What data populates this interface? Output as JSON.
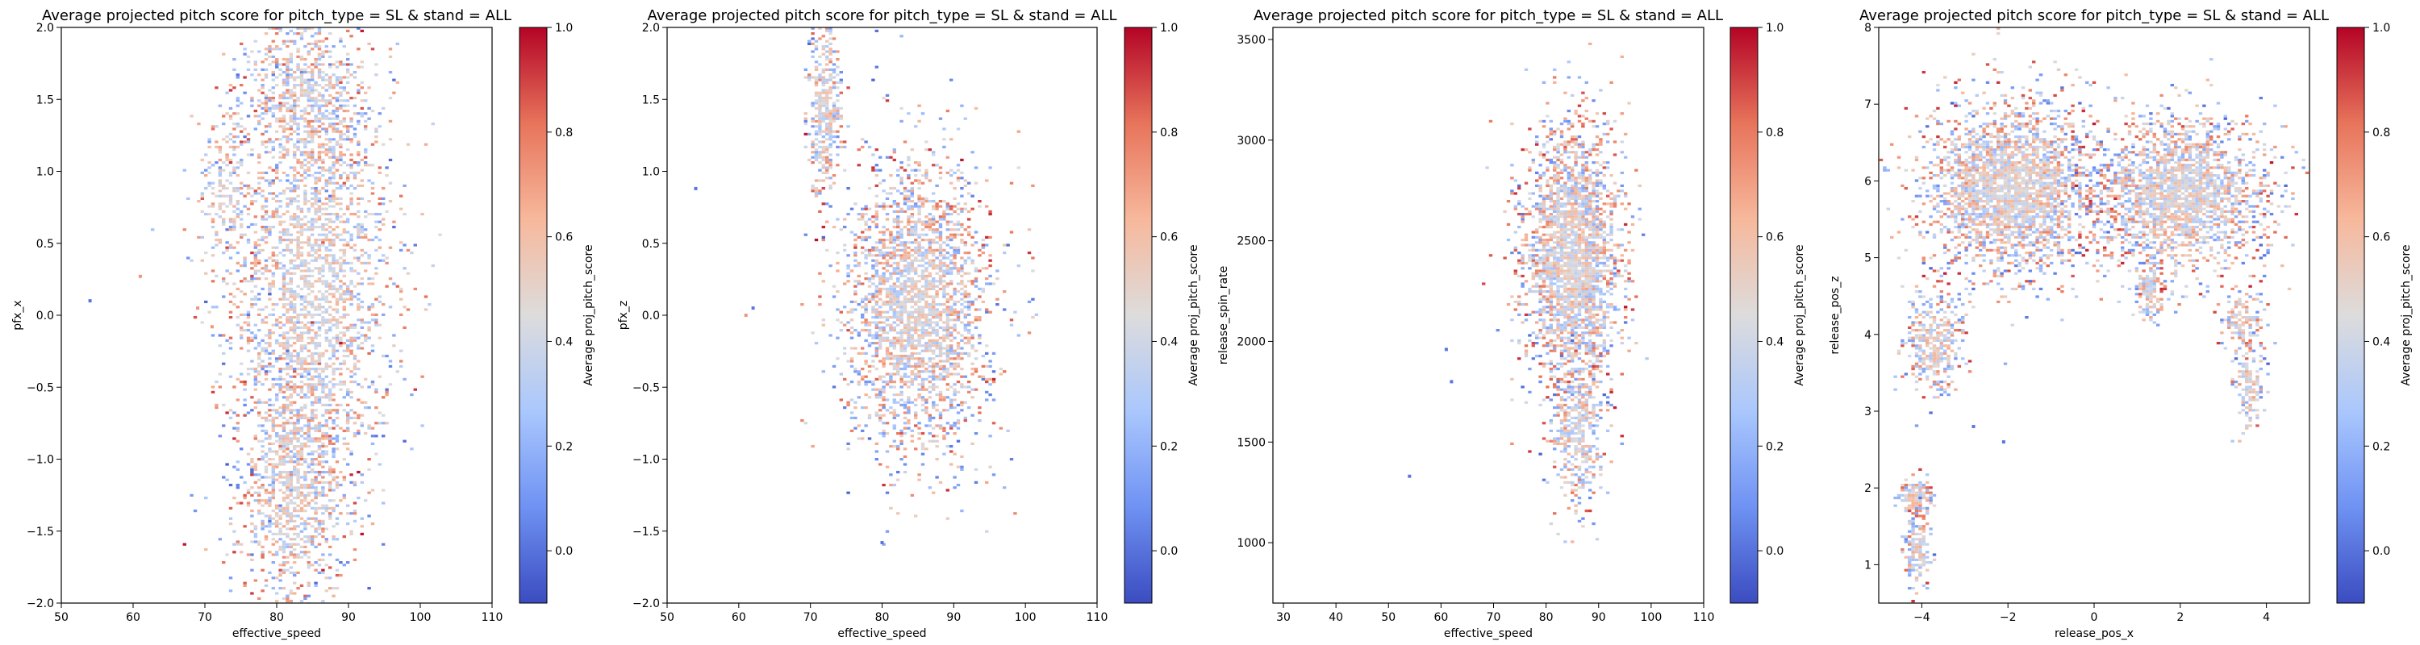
{
  "figure": {
    "colormap": "coolwarm",
    "colormap_stops": [
      "#3b4cc0",
      "#6f92f3",
      "#aac7fd",
      "#dddcdc",
      "#f7b89c",
      "#e7745b",
      "#b40426"
    ]
  },
  "chart_data": [
    {
      "type": "heatmap",
      "subtype": "hexbin",
      "title": "Average projected pitch score for pitch_type = SL & stand = ALL",
      "xlabel": "effective_speed",
      "ylabel": "pfx_x",
      "xlim": [
        50,
        110
      ],
      "ylim": [
        -2,
        2
      ],
      "xticks": [
        "50",
        "60",
        "70",
        "80",
        "90",
        "100",
        "110"
      ],
      "yticks": [
        "-2.0",
        "-1.5",
        "-1.0",
        "-0.5",
        "0.0",
        "0.5",
        "1.0",
        "1.5",
        "2.0"
      ],
      "colorbar": {
        "label": "Average proj_pitch_score",
        "range": [
          -0.1,
          1.0
        ],
        "ticks": [
          "0.0",
          "0.2",
          "0.4",
          "0.6",
          "0.8",
          "1.0"
        ]
      },
      "clusters": [
        {
          "cx": 85,
          "cy": 0.2,
          "sx": 5.5,
          "sy": 0.85,
          "density": 1.0
        },
        {
          "cx": 82,
          "cy": -1.2,
          "sx": 3.5,
          "sy": 0.45,
          "density": 0.35
        },
        {
          "cx": 84,
          "cy": 1.5,
          "sx": 4,
          "sy": 0.35,
          "density": 0.25
        },
        {
          "cx": 73,
          "cy": 0.9,
          "sx": 2,
          "sy": 0.3,
          "density": 0.08
        }
      ],
      "outliers": [
        [
          54,
          0.1
        ],
        [
          61,
          0.27
        ],
        [
          71,
          -0.08
        ],
        [
          69,
          0.05
        ]
      ]
    },
    {
      "type": "heatmap",
      "subtype": "hexbin",
      "title": "Average projected pitch score for pitch_type = SL & stand = ALL",
      "xlabel": "effective_speed",
      "ylabel": "pfx_z",
      "xlim": [
        50,
        110
      ],
      "ylim": [
        -2,
        2
      ],
      "xticks": [
        "50",
        "60",
        "70",
        "80",
        "90",
        "100",
        "110"
      ],
      "yticks": [
        "-2.0",
        "-1.5",
        "-1.0",
        "-0.5",
        "0.0",
        "0.5",
        "1.0",
        "1.5",
        "2.0"
      ],
      "colorbar": {
        "label": "Average proj_pitch_score",
        "range": [
          -0.1,
          1.0
        ],
        "ticks": [
          "0.0",
          "0.2",
          "0.4",
          "0.6",
          "0.8",
          "1.0"
        ]
      },
      "clusters": [
        {
          "cx": 85,
          "cy": 0.05,
          "sx": 5,
          "sy": 0.5,
          "density": 1.0
        },
        {
          "cx": 72,
          "cy": 1.45,
          "sx": 1.2,
          "sy": 0.3,
          "density": 0.15
        }
      ],
      "outliers": [
        [
          54,
          0.88
        ],
        [
          61,
          0.0
        ],
        [
          80,
          -1.58
        ],
        [
          62,
          0.05
        ]
      ]
    },
    {
      "type": "heatmap",
      "subtype": "hexbin",
      "title": "Average projected pitch score for pitch_type = SL & stand = ALL",
      "xlabel": "effective_speed",
      "ylabel": "release_spin_rate",
      "xlim": [
        28,
        110
      ],
      "ylim": [
        700,
        3560
      ],
      "xticks": [
        "30",
        "40",
        "50",
        "60",
        "70",
        "80",
        "90",
        "100",
        "110"
      ],
      "xtick_values": [
        30,
        40,
        50,
        60,
        70,
        80,
        90,
        100,
        110
      ],
      "yticks": [
        "1000",
        "1500",
        "2000",
        "2500",
        "3000",
        "3500"
      ],
      "ytick_values": [
        1000,
        1500,
        2000,
        2500,
        3000,
        3500
      ],
      "colorbar": {
        "label": "Average proj_pitch_score",
        "range": [
          -0.1,
          1.0
        ],
        "ticks": [
          "0.0",
          "0.2",
          "0.4",
          "0.6",
          "0.8",
          "1.0"
        ]
      },
      "clusters": [
        {
          "cx": 85,
          "cy": 2400,
          "sx": 4.5,
          "sy": 330,
          "density": 1.0
        },
        {
          "cx": 86,
          "cy": 1550,
          "sx": 2.5,
          "sy": 200,
          "density": 0.15
        }
      ],
      "outliers": [
        [
          54,
          1330
        ],
        [
          61,
          1960
        ],
        [
          62,
          1800
        ]
      ]
    },
    {
      "type": "heatmap",
      "subtype": "hexbin",
      "title": "Average projected pitch score for pitch_type = SL & stand = ALL",
      "xlabel": "release_pos_x",
      "ylabel": "release_pos_z",
      "xlim": [
        -5,
        5
      ],
      "ylim": [
        0.5,
        8
      ],
      "xticks": [
        "-4",
        "-2",
        "0",
        "2",
        "4"
      ],
      "xtick_values": [
        -4,
        -2,
        0,
        2,
        4
      ],
      "yticks": [
        "1",
        "2",
        "3",
        "4",
        "5",
        "6",
        "7",
        "8"
      ],
      "ytick_values": [
        1,
        2,
        3,
        4,
        5,
        6,
        7,
        8
      ],
      "colorbar": {
        "label": "Average proj_pitch_score",
        "range": [
          -0.1,
          1.0
        ],
        "ticks": [
          "0.0",
          "0.2",
          "0.4",
          "0.6",
          "0.8",
          "1.0"
        ]
      },
      "clusters": [
        {
          "cx": -1.9,
          "cy": 5.9,
          "sx": 1.0,
          "sy": 0.55,
          "density": 1.0
        },
        {
          "cx": 2.0,
          "cy": 5.8,
          "sx": 1.0,
          "sy": 0.5,
          "density": 0.8
        },
        {
          "cx": -3.7,
          "cy": 3.9,
          "sx": 0.35,
          "sy": 0.35,
          "density": 0.15
        },
        {
          "cx": -4.1,
          "cy": 1.9,
          "sx": 0.2,
          "sy": 0.12,
          "density": 0.06
        },
        {
          "cx": -4.1,
          "cy": 1.2,
          "sx": 0.15,
          "sy": 0.25,
          "density": 0.06
        },
        {
          "cx": 3.6,
          "cy": 3.4,
          "sx": 0.2,
          "sy": 0.3,
          "density": 0.05
        },
        {
          "cx": 1.3,
          "cy": 4.6,
          "sx": 0.15,
          "sy": 0.25,
          "density": 0.05
        },
        {
          "cx": 3.4,
          "cy": 4.2,
          "sx": 0.25,
          "sy": 0.2,
          "density": 0.05
        }
      ],
      "outliers": [
        [
          -2.8,
          2.8
        ],
        [
          -2.1,
          2.6
        ]
      ]
    }
  ]
}
